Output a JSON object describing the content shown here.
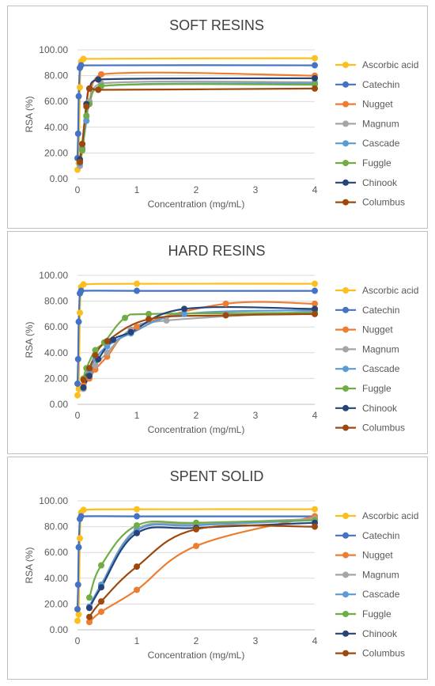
{
  "legend_items": [
    "Ascorbic acid",
    "Catechin",
    "Nugget",
    "Magnum",
    "Cascade",
    "Fuggle",
    "Chinook",
    "Columbus"
  ],
  "colors": {
    "Ascorbic acid": "#fbbf1e",
    "Catechin": "#4472c4",
    "Nugget": "#ed7d31",
    "Magnum": "#a5a5a5",
    "Cascade": "#5b9bd5",
    "Fuggle": "#70ad47",
    "Chinook": "#264478",
    "Columbus": "#9e480e"
  },
  "chart_data": [
    {
      "type": "scatter",
      "title": "SOFT RESINS",
      "xlabel": "Concentration (mg/mL)",
      "ylabel": "RSA (%)",
      "xlim": [
        0,
        4
      ],
      "ylim": [
        0,
        100
      ],
      "x_ticks": [
        "0",
        "1",
        "2",
        "3",
        "4"
      ],
      "y_ticks": [
        "0.00",
        "20.00",
        "40.00",
        "60.00",
        "80.00",
        "100.00"
      ],
      "grid": true,
      "legend": "right",
      "series": [
        {
          "name": "Ascorbic acid",
          "x": [
            0,
            0.02,
            0.04,
            0.06,
            0.1,
            4
          ],
          "y": [
            7,
            12,
            71,
            91,
            93,
            93.5
          ]
        },
        {
          "name": "Catechin",
          "x": [
            0,
            0.01,
            0.02,
            0.04,
            0.06,
            4
          ],
          "y": [
            16,
            35,
            64,
            86,
            88,
            88
          ]
        },
        {
          "name": "Nugget",
          "x": [
            0.04,
            0.08,
            0.15,
            0.2,
            0.4,
            4
          ],
          "y": [
            14,
            24,
            45,
            60,
            81,
            80
          ]
        },
        {
          "name": "Magnum",
          "x": [
            0.04,
            0.08,
            0.15,
            0.2,
            0.4,
            4
          ],
          "y": [
            10,
            22,
            48,
            60,
            74,
            75
          ]
        },
        {
          "name": "Cascade",
          "x": [
            0.04,
            0.08,
            0.15,
            0.2,
            0.4,
            4
          ],
          "y": [
            12,
            23,
            45,
            58,
            72,
            74
          ]
        },
        {
          "name": "Fuggle",
          "x": [
            0.04,
            0.08,
            0.15,
            0.2,
            0.4,
            4
          ],
          "y": [
            15,
            22,
            49,
            58,
            72,
            73
          ]
        },
        {
          "name": "Chinook",
          "x": [
            0.04,
            0.08,
            0.15,
            0.2,
            0.35,
            4
          ],
          "y": [
            15,
            27,
            58,
            70,
            77,
            78
          ]
        },
        {
          "name": "Columbus",
          "x": [
            0.04,
            0.08,
            0.15,
            0.2,
            0.35,
            4
          ],
          "y": [
            13,
            27,
            56,
            70,
            69,
            70
          ]
        }
      ]
    },
    {
      "type": "scatter",
      "title": "HARD RESINS",
      "xlabel": "Concentration (mg/mL)",
      "ylabel": "RSA (%)",
      "xlim": [
        0,
        4
      ],
      "ylim": [
        0,
        100
      ],
      "x_ticks": [
        "0",
        "1",
        "2",
        "3",
        "4"
      ],
      "y_ticks": [
        "0.00",
        "20.00",
        "40.00",
        "60.00",
        "80.00",
        "100.00"
      ],
      "grid": true,
      "legend": "right",
      "series": [
        {
          "name": "Ascorbic acid",
          "x": [
            0,
            0.02,
            0.04,
            0.06,
            0.1,
            1,
            4
          ],
          "y": [
            7,
            12,
            71,
            91,
            93,
            93.5,
            93.5
          ]
        },
        {
          "name": "Catechin",
          "x": [
            0,
            0.01,
            0.02,
            0.04,
            0.06,
            1,
            4
          ],
          "y": [
            16,
            35,
            64,
            86,
            88,
            88,
            88
          ]
        },
        {
          "name": "Nugget",
          "x": [
            0.1,
            0.2,
            0.3,
            0.5,
            1,
            2.5,
            4
          ],
          "y": [
            15,
            20,
            27,
            37,
            60,
            78,
            78
          ]
        },
        {
          "name": "Magnum",
          "x": [
            0.1,
            0.2,
            0.3,
            0.5,
            0.9,
            1.5,
            4
          ],
          "y": [
            12,
            22,
            30,
            40,
            58,
            65,
            72
          ]
        },
        {
          "name": "Cascade",
          "x": [
            0.1,
            0.2,
            0.3,
            0.5,
            0.9,
            1.8,
            4
          ],
          "y": [
            13,
            25,
            35,
            45,
            55,
            70,
            73
          ]
        },
        {
          "name": "Fuggle",
          "x": [
            0.1,
            0.15,
            0.3,
            0.45,
            0.8,
            1.2,
            4
          ],
          "y": [
            20,
            28,
            42,
            48,
            67,
            70,
            71
          ]
        },
        {
          "name": "Chinook",
          "x": [
            0.1,
            0.2,
            0.35,
            0.6,
            0.9,
            1.8,
            4
          ],
          "y": [
            13,
            22,
            35,
            50,
            56,
            74,
            74
          ]
        },
        {
          "name": "Columbus",
          "x": [
            0.1,
            0.2,
            0.3,
            0.5,
            1.2,
            2.5,
            4
          ],
          "y": [
            19,
            28,
            38,
            49,
            66,
            69,
            70
          ]
        }
      ]
    },
    {
      "type": "scatter",
      "title": "SPENT SOLID",
      "xlabel": "Concentration (mg/mL)",
      "ylabel": "RSA (%)",
      "xlim": [
        0,
        4
      ],
      "ylim": [
        0,
        100
      ],
      "x_ticks": [
        "0",
        "1",
        "2",
        "3",
        "4"
      ],
      "y_ticks": [
        "0.00",
        "20.00",
        "40.00",
        "60.00",
        "80.00",
        "100.00"
      ],
      "grid": true,
      "legend": "right",
      "series": [
        {
          "name": "Ascorbic acid",
          "x": [
            0,
            0.02,
            0.04,
            0.06,
            0.1,
            1,
            4
          ],
          "y": [
            7,
            12,
            71,
            91,
            93,
            93.5,
            93.5
          ]
        },
        {
          "name": "Catechin",
          "x": [
            0,
            0.01,
            0.02,
            0.04,
            0.06,
            1,
            4
          ],
          "y": [
            16,
            35,
            64,
            86,
            88,
            88,
            88
          ]
        },
        {
          "name": "Nugget",
          "x": [
            0.2,
            0.4,
            1,
            2,
            4
          ],
          "y": [
            6,
            14,
            31,
            65,
            88
          ]
        },
        {
          "name": "Magnum",
          "x": [
            0.2,
            0.4,
            1,
            2,
            4
          ],
          "y": [
            17,
            35,
            78,
            82,
            86
          ]
        },
        {
          "name": "Cascade",
          "x": [
            0.2,
            0.4,
            1,
            2,
            4
          ],
          "y": [
            18,
            35,
            77,
            81,
            85
          ]
        },
        {
          "name": "Fuggle",
          "x": [
            0.2,
            0.4,
            1,
            2,
            4
          ],
          "y": [
            25,
            50,
            81,
            83,
            85
          ]
        },
        {
          "name": "Chinook",
          "x": [
            0.2,
            0.4,
            1,
            2,
            4
          ],
          "y": [
            17,
            33,
            75,
            79,
            83
          ]
        },
        {
          "name": "Columbus",
          "x": [
            0.2,
            0.4,
            1,
            2,
            4
          ],
          "y": [
            10,
            22,
            49,
            78,
            80
          ]
        }
      ]
    }
  ]
}
